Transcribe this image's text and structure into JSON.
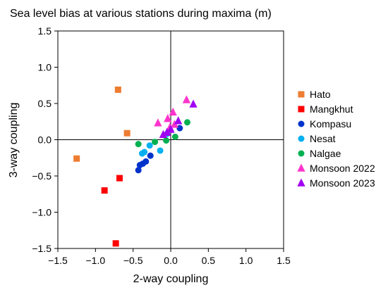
{
  "chart_data": {
    "type": "scatter",
    "title": "Sea level bias at various stations during maxima (m)",
    "xlabel": "2-way coupling",
    "ylabel": "3-way coupling",
    "xlim": [
      -1.5,
      1.5
    ],
    "ylim": [
      -1.5,
      1.5
    ],
    "xticks": [
      -1.5,
      -1.0,
      -0.5,
      0.0,
      0.5,
      1.0,
      1.5
    ],
    "yticks": [
      -1.5,
      -1.0,
      -0.5,
      0.0,
      0.5,
      1.0,
      1.5
    ],
    "xtick_labels": [
      "−1.5",
      "−1.0",
      "−0.5",
      "0.0",
      "0.5",
      "1.0",
      "1.5"
    ],
    "ytick_labels": [
      "−1.5",
      "−1.0",
      "−0.5",
      "0.0",
      "0.5",
      "1.0",
      "1.5"
    ],
    "grid": false,
    "zero_lines": true,
    "legend_position": "right",
    "series": [
      {
        "name": "Hato",
        "color": "#ED7D31",
        "marker": "square",
        "points": [
          [
            -0.7,
            0.69
          ],
          [
            -0.58,
            0.09
          ],
          [
            -1.25,
            -0.26
          ]
        ]
      },
      {
        "name": "Mangkhut",
        "color": "#FF0000",
        "marker": "square",
        "points": [
          [
            -0.68,
            -0.53
          ],
          [
            -0.88,
            -0.7
          ],
          [
            -0.73,
            -1.43
          ]
        ]
      },
      {
        "name": "Kompasu",
        "color": "#0033CC",
        "marker": "circle",
        "points": [
          [
            -0.43,
            -0.42
          ],
          [
            -0.41,
            -0.35
          ],
          [
            -0.37,
            -0.33
          ],
          [
            -0.33,
            -0.3
          ],
          [
            -0.27,
            -0.22
          ],
          [
            0.12,
            0.16
          ]
        ]
      },
      {
        "name": "Nesat",
        "color": "#00B0F0",
        "marker": "circle",
        "points": [
          [
            -0.38,
            -0.19
          ],
          [
            -0.35,
            -0.17
          ],
          [
            -0.28,
            -0.08
          ],
          [
            -0.14,
            -0.15
          ],
          [
            -0.05,
            0.08
          ]
        ]
      },
      {
        "name": "Nalgae",
        "color": "#00B050",
        "marker": "circle",
        "points": [
          [
            -0.43,
            -0.06
          ],
          [
            -0.21,
            -0.03
          ],
          [
            -0.06,
            -0.01
          ],
          [
            0.06,
            0.04
          ],
          [
            0.22,
            0.24
          ]
        ]
      },
      {
        "name": "Monsoon 2022",
        "color": "#FF33CC",
        "marker": "triangle",
        "points": [
          [
            -0.17,
            0.23
          ],
          [
            -0.04,
            0.29
          ],
          [
            0.03,
            0.38
          ],
          [
            0.21,
            0.55
          ],
          [
            -0.01,
            0.17
          ],
          [
            0.05,
            0.21
          ]
        ]
      },
      {
        "name": "Monsoon 2023",
        "color": "#A100F2",
        "marker": "triangle",
        "points": [
          [
            -0.1,
            0.07
          ],
          [
            -0.05,
            0.1
          ],
          [
            0.0,
            0.14
          ],
          [
            0.1,
            0.26
          ],
          [
            0.3,
            0.49
          ]
        ]
      }
    ]
  }
}
